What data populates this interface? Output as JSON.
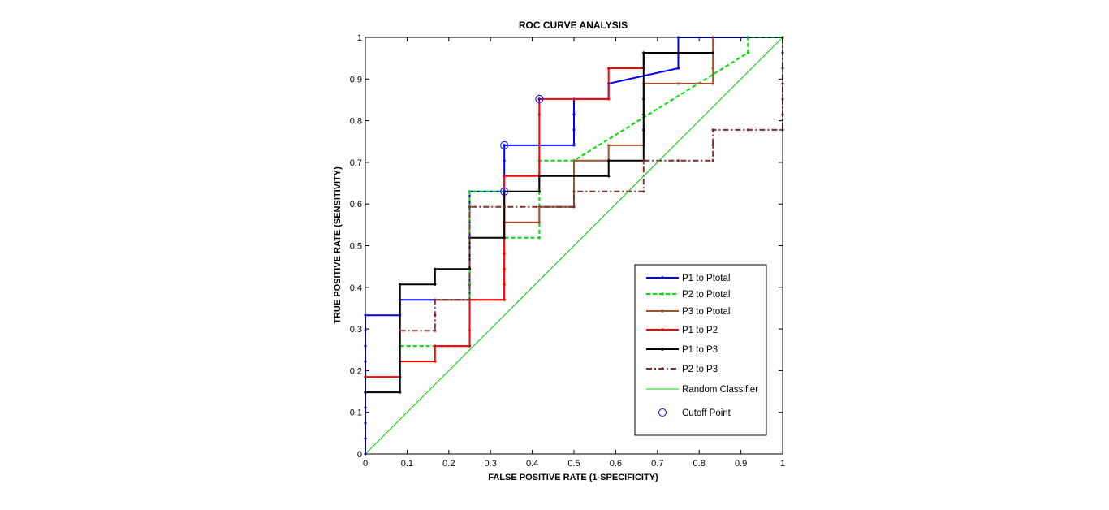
{
  "chart_data": {
    "type": "line",
    "title": "ROC CURVE ANALYSIS",
    "xlabel": "FALSE POSITIVE RATE (1-SPECIFICITY)",
    "ylabel": "TRUE POSITIVE RATE (SENSITIVITY)",
    "xlim": [
      0,
      1
    ],
    "ylim": [
      0,
      1
    ],
    "xticks": [
      "0",
      "0.1",
      "0.2",
      "0.3",
      "0.4",
      "0.5",
      "0.6",
      "0.7",
      "0.8",
      "0.9",
      "1"
    ],
    "yticks": [
      "0",
      "0.1",
      "0.2",
      "0.3",
      "0.4",
      "0.5",
      "0.6",
      "0.7",
      "0.8",
      "0.9",
      "1"
    ],
    "grid": false,
    "legend_position": "bottom-right",
    "series": [
      {
        "name": "P1 to Ptotal",
        "color": "#0000ff",
        "dash": "solid",
        "marker": "dot",
        "x": [
          0,
          0,
          0,
          0,
          0,
          0,
          0,
          0,
          0,
          0,
          0.083,
          0.083,
          0.25,
          0.25,
          0.25,
          0.25,
          0.25,
          0.25,
          0.333,
          0.333,
          0.333,
          0.333,
          0.5,
          0.5,
          0.5,
          0.5,
          0.583,
          0.583,
          0.75,
          0.75,
          0.833,
          0.917,
          1
        ],
        "y": [
          0,
          0.037,
          0.074,
          0.111,
          0.148,
          0.185,
          0.222,
          0.259,
          0.296,
          0.333,
          0.333,
          0.37,
          0.37,
          0.407,
          0.444,
          0.519,
          0.593,
          0.63,
          0.63,
          0.667,
          0.704,
          0.741,
          0.741,
          0.778,
          0.815,
          0.852,
          0.852,
          0.889,
          0.926,
          1,
          1,
          1,
          1
        ]
      },
      {
        "name": "P2 to Ptotal",
        "color": "#00dd00",
        "dash": "dashed",
        "marker": "dot",
        "x": [
          0.083,
          0.167,
          0.167,
          0.25,
          0.25,
          0.25,
          0.333,
          0.333,
          0.333,
          0.417,
          0.417,
          0.417,
          0.5,
          0.917,
          0.917,
          1
        ],
        "y": [
          0.259,
          0.259,
          0.259,
          0.259,
          0.296,
          0.63,
          0.63,
          0.519,
          0.519,
          0.519,
          0.63,
          0.704,
          0.704,
          0.963,
          1,
          1
        ]
      },
      {
        "name": "P3 to Ptotal",
        "color": "#a0522d",
        "dash": "solid",
        "marker": "dot",
        "x": [
          0.167,
          0.25,
          0.333,
          0.333,
          0.417,
          0.417,
          0.5,
          0.5,
          0.583,
          0.583,
          0.667,
          0.667,
          0.75,
          0.833,
          0.833,
          0.833,
          0.833
        ],
        "y": [
          0.37,
          0.37,
          0.37,
          0.556,
          0.556,
          0.593,
          0.593,
          0.704,
          0.704,
          0.741,
          0.741,
          0.889,
          0.889,
          0.889,
          0.926,
          0.963,
          1
        ]
      },
      {
        "name": "P1 to P2",
        "color": "#ff0000",
        "dash": "solid",
        "marker": "dot",
        "x": [
          0,
          0.083,
          0.083,
          0.167,
          0.167,
          0.25,
          0.25,
          0.333,
          0.333,
          0.333,
          0.333,
          0.333,
          0.417,
          0.417,
          0.417,
          0.417,
          0.583,
          0.583,
          0.667,
          0.667,
          0.75
        ],
        "y": [
          0.185,
          0.185,
          0.222,
          0.222,
          0.259,
          0.259,
          0.37,
          0.37,
          0.407,
          0.444,
          0.481,
          0.667,
          0.667,
          0.741,
          0.815,
          0.852,
          0.852,
          0.926,
          0.926,
          0.963,
          0.963
        ]
      },
      {
        "name": "P1 to P3",
        "color": "#000000",
        "dash": "solid",
        "marker": "dot",
        "x": [
          0,
          0.083,
          0.083,
          0.083,
          0.083,
          0.167,
          0.167,
          0.25,
          0.25,
          0.333,
          0.333,
          0.333,
          0.417,
          0.417,
          0.583,
          0.583,
          0.667,
          0.667,
          0.667,
          0.667,
          0.667,
          0.833
        ],
        "y": [
          0.148,
          0.148,
          0.185,
          0.222,
          0.407,
          0.407,
          0.444,
          0.444,
          0.519,
          0.519,
          0.593,
          0.63,
          0.63,
          0.667,
          0.667,
          0.704,
          0.704,
          0.778,
          0.815,
          0.852,
          0.963,
          0.963
        ]
      },
      {
        "name": "P2 to P3",
        "color": "#7b2f2f",
        "dash": "dashdot",
        "marker": "dot",
        "x": [
          0.083,
          0.167,
          0.167,
          0.167,
          0.25,
          0.25,
          0.5,
          0.5,
          0.667,
          0.667,
          0.75,
          0.833,
          0.833,
          0.833,
          0.917,
          1,
          1,
          1,
          1,
          1,
          1,
          1
        ],
        "y": [
          0.296,
          0.296,
          0.333,
          0.37,
          0.37,
          0.593,
          0.593,
          0.63,
          0.63,
          0.704,
          0.704,
          0.704,
          0.741,
          0.778,
          0.778,
          0.778,
          0.815,
          0.852,
          0.889,
          0.926,
          0.963,
          1
        ]
      },
      {
        "name": "Random Classifier",
        "color": "#00cc00",
        "dash": "solid",
        "marker": "none",
        "x": [
          0,
          1
        ],
        "y": [
          0,
          1
        ]
      }
    ],
    "cutoff_points": {
      "name": "Cutoff Point",
      "color": "#0000ff",
      "points": [
        {
          "x": 0.333,
          "y": 0.741
        },
        {
          "x": 0.333,
          "y": 0.63
        },
        {
          "x": 0.417,
          "y": 0.852
        }
      ]
    }
  }
}
